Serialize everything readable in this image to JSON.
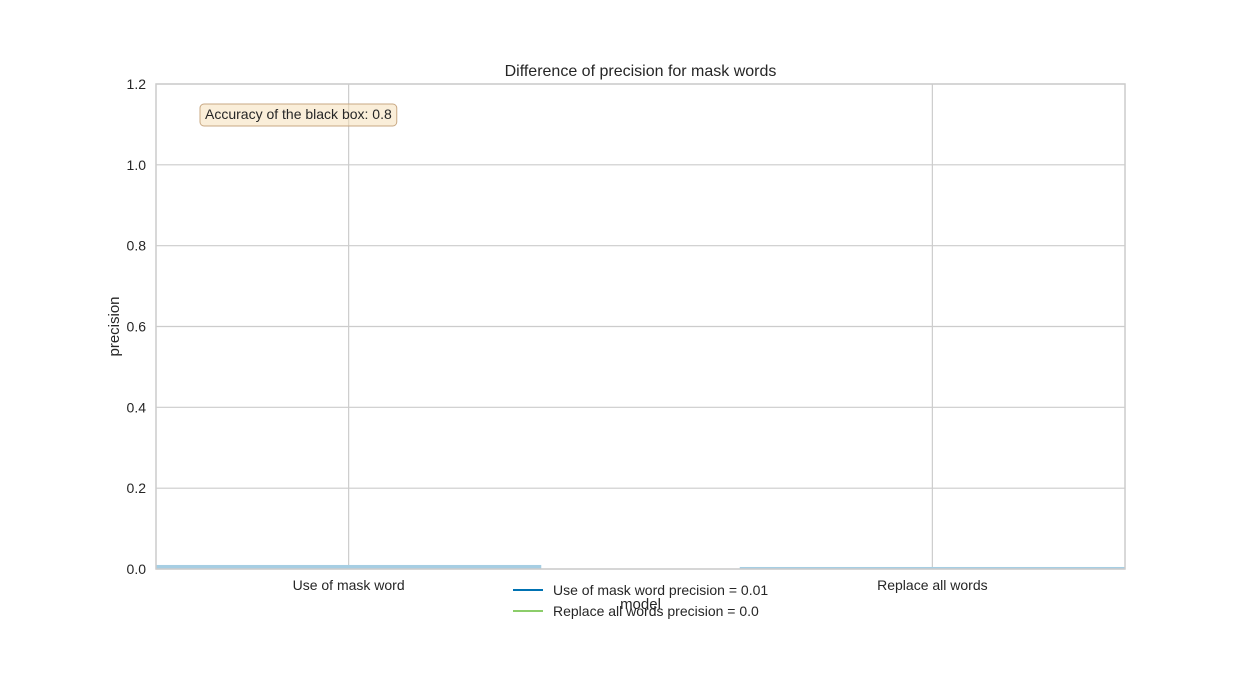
{
  "chart_data": {
    "type": "bar",
    "title": "Difference of precision for mask words",
    "xlabel": "model",
    "ylabel": "precision",
    "categories": [
      "Use of mask word",
      "Replace all words"
    ],
    "values": [
      0.01,
      0.005
    ],
    "bar_color": "#a6cee3",
    "ylim": [
      0,
      1.2
    ],
    "yticks": [
      "0.0",
      "0.2",
      "0.4",
      "0.6",
      "0.8",
      "1.0",
      "1.2"
    ],
    "grid": true,
    "annotation": "Accuracy of the black box: 0.8",
    "legend": {
      "position": "bottom-center",
      "entries": [
        {
          "label": "Use of mask word precision = 0.01",
          "color": "#0072b2"
        },
        {
          "label": "Replace all words precision = 0.0",
          "color": "#8ccd6a"
        }
      ]
    }
  }
}
